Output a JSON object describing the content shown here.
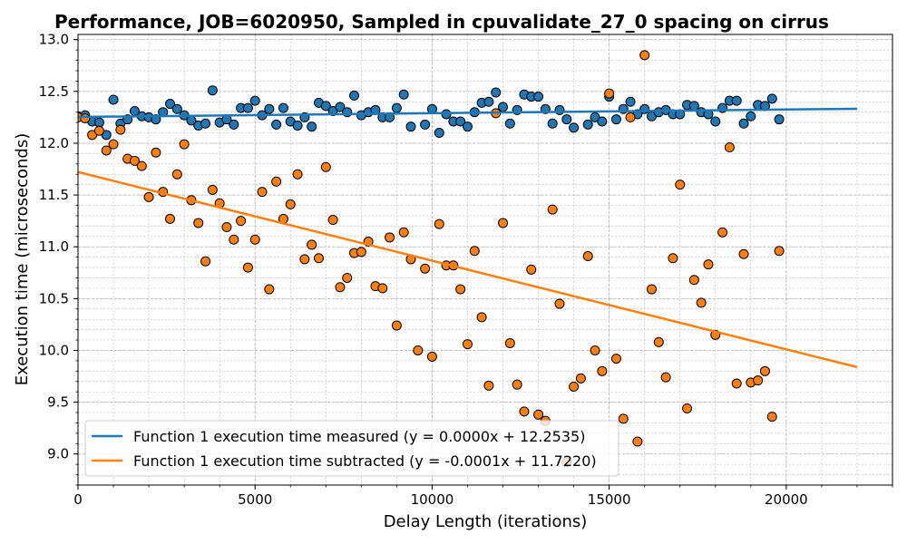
{
  "chart_data": {
    "type": "scatter",
    "title": "Performance, JOB=6020950, Sampled in cpuvalidate_27_0 spacing on cirrus",
    "xlabel": "Delay Length (iterations)",
    "ylabel": "Execution time (microseconds)",
    "xlim": [
      0,
      23000
    ],
    "ylim": [
      8.7,
      13.05
    ],
    "xticks": [
      "0",
      "5000",
      "10000",
      "15000",
      "20000"
    ],
    "yticks": [
      "9.0",
      "9.5",
      "10.0",
      "10.5",
      "11.0",
      "11.5",
      "12.0",
      "12.5",
      "13.0"
    ],
    "grid": true,
    "legend_position": "lower-left",
    "series": [
      {
        "name": "Function 1 execution time measured (y = 0.0000x + 12.2535)",
        "color": "#1f77b4",
        "fit": {
          "slope": 3.6e-06,
          "intercept": 12.2535,
          "x_range": [
            0,
            22000
          ]
        },
        "points": [
          [
            0,
            12.26
          ],
          [
            200,
            12.27
          ],
          [
            400,
            12.21
          ],
          [
            600,
            12.2
          ],
          [
            800,
            12.08
          ],
          [
            1000,
            12.42
          ],
          [
            1200,
            12.19
          ],
          [
            1400,
            12.23
          ],
          [
            1600,
            12.31
          ],
          [
            1800,
            12.26
          ],
          [
            2000,
            12.25
          ],
          [
            2200,
            12.23
          ],
          [
            2400,
            12.3
          ],
          [
            2600,
            12.38
          ],
          [
            2800,
            12.33
          ],
          [
            3000,
            12.27
          ],
          [
            3200,
            12.22
          ],
          [
            3400,
            12.17
          ],
          [
            3600,
            12.19
          ],
          [
            3800,
            12.51
          ],
          [
            4000,
            12.2
          ],
          [
            4200,
            12.23
          ],
          [
            4400,
            12.18
          ],
          [
            4600,
            12.34
          ],
          [
            4800,
            12.34
          ],
          [
            5000,
            12.41
          ],
          [
            5200,
            12.27
          ],
          [
            5400,
            12.33
          ],
          [
            5600,
            12.18
          ],
          [
            5800,
            12.34
          ],
          [
            6000,
            12.21
          ],
          [
            6200,
            12.17
          ],
          [
            6400,
            12.25
          ],
          [
            6600,
            12.16
          ],
          [
            6800,
            12.39
          ],
          [
            7000,
            12.36
          ],
          [
            7200,
            12.31
          ],
          [
            7400,
            12.35
          ],
          [
            7600,
            12.3
          ],
          [
            7800,
            12.46
          ],
          [
            8000,
            12.27
          ],
          [
            8200,
            12.3
          ],
          [
            8400,
            12.32
          ],
          [
            8600,
            12.25
          ],
          [
            8800,
            12.25
          ],
          [
            9000,
            12.34
          ],
          [
            9200,
            12.47
          ],
          [
            9400,
            12.16
          ],
          [
            9800,
            12.18
          ],
          [
            10000,
            12.33
          ],
          [
            10200,
            12.1
          ],
          [
            10400,
            12.28
          ],
          [
            10600,
            12.21
          ],
          [
            10800,
            12.21
          ],
          [
            11000,
            12.16
          ],
          [
            11200,
            12.3
          ],
          [
            11400,
            12.39
          ],
          [
            11600,
            12.4
          ],
          [
            11800,
            12.49
          ],
          [
            12000,
            12.35
          ],
          [
            12200,
            12.19
          ],
          [
            12400,
            12.32
          ],
          [
            12600,
            12.47
          ],
          [
            12800,
            12.45
          ],
          [
            13000,
            12.45
          ],
          [
            13200,
            12.33
          ],
          [
            13400,
            12.19
          ],
          [
            13600,
            12.32
          ],
          [
            13800,
            12.23
          ],
          [
            14000,
            12.15
          ],
          [
            14400,
            12.18
          ],
          [
            14600,
            12.25
          ],
          [
            14800,
            12.21
          ],
          [
            15000,
            12.45
          ],
          [
            15200,
            12.23
          ],
          [
            15400,
            12.33
          ],
          [
            15600,
            12.4
          ],
          [
            15800,
            12.28
          ],
          [
            16000,
            12.33
          ],
          [
            16200,
            12.26
          ],
          [
            16400,
            12.3
          ],
          [
            16600,
            12.32
          ],
          [
            16800,
            12.28
          ],
          [
            17000,
            12.28
          ],
          [
            17200,
            12.37
          ],
          [
            17400,
            12.36
          ],
          [
            17600,
            12.3
          ],
          [
            17800,
            12.28
          ],
          [
            18000,
            12.21
          ],
          [
            18200,
            12.34
          ],
          [
            18400,
            12.41
          ],
          [
            18600,
            12.41
          ],
          [
            18800,
            12.19
          ],
          [
            19000,
            12.26
          ],
          [
            19200,
            12.37
          ],
          [
            19400,
            12.36
          ],
          [
            19600,
            12.43
          ],
          [
            19800,
            12.23
          ]
        ]
      },
      {
        "name": "Function 1 execution time subtracted (y = -0.0001x + 11.7220)",
        "color": "#ff7f0e",
        "fit": {
          "slope": -8.56e-05,
          "intercept": 11.722,
          "x_range": [
            0,
            22000
          ]
        },
        "points": [
          [
            0,
            12.25
          ],
          [
            200,
            12.24
          ],
          [
            400,
            12.08
          ],
          [
            600,
            12.12
          ],
          [
            800,
            11.93
          ],
          [
            1000,
            11.99
          ],
          [
            1200,
            12.13
          ],
          [
            1400,
            11.85
          ],
          [
            1600,
            11.83
          ],
          [
            1800,
            11.78
          ],
          [
            2000,
            11.48
          ],
          [
            2200,
            11.91
          ],
          [
            2400,
            11.53
          ],
          [
            2600,
            11.27
          ],
          [
            2800,
            11.7
          ],
          [
            3000,
            11.99
          ],
          [
            3200,
            11.45
          ],
          [
            3400,
            11.23
          ],
          [
            3600,
            10.86
          ],
          [
            3800,
            11.55
          ],
          [
            4000,
            11.42
          ],
          [
            4200,
            11.19
          ],
          [
            4400,
            11.07
          ],
          [
            4600,
            11.25
          ],
          [
            4800,
            10.8
          ],
          [
            5000,
            11.07
          ],
          [
            5200,
            11.53
          ],
          [
            5400,
            10.59
          ],
          [
            5600,
            11.63
          ],
          [
            5800,
            11.27
          ],
          [
            6000,
            11.41
          ],
          [
            6200,
            11.7
          ],
          [
            6400,
            10.88
          ],
          [
            6600,
            11.02
          ],
          [
            6800,
            10.89
          ],
          [
            7000,
            11.77
          ],
          [
            7200,
            11.26
          ],
          [
            7400,
            10.61
          ],
          [
            7600,
            10.7
          ],
          [
            7800,
            10.94
          ],
          [
            8000,
            10.95
          ],
          [
            8200,
            11.05
          ],
          [
            8400,
            10.62
          ],
          [
            8600,
            10.6
          ],
          [
            8800,
            11.09
          ],
          [
            9000,
            10.24
          ],
          [
            9200,
            11.14
          ],
          [
            9400,
            10.88
          ],
          [
            9600,
            10.0
          ],
          [
            9800,
            10.79
          ],
          [
            10000,
            9.94
          ],
          [
            10200,
            11.22
          ],
          [
            10400,
            10.82
          ],
          [
            10600,
            10.82
          ],
          [
            10800,
            10.59
          ],
          [
            11000,
            10.06
          ],
          [
            11200,
            10.96
          ],
          [
            11400,
            10.32
          ],
          [
            11600,
            9.66
          ],
          [
            11800,
            12.29
          ],
          [
            12000,
            11.23
          ],
          [
            12200,
            10.07
          ],
          [
            12400,
            9.67
          ],
          [
            12600,
            9.41
          ],
          [
            12800,
            10.78
          ],
          [
            13000,
            9.38
          ],
          [
            13200,
            9.32
          ],
          [
            13400,
            11.36
          ],
          [
            13600,
            10.45
          ],
          [
            13800,
            8.92
          ],
          [
            14000,
            9.65
          ],
          [
            14200,
            9.73
          ],
          [
            14400,
            10.91
          ],
          [
            14600,
            10.0
          ],
          [
            14800,
            9.8
          ],
          [
            15000,
            12.48
          ],
          [
            15200,
            9.92
          ],
          [
            15400,
            9.34
          ],
          [
            15600,
            12.25
          ],
          [
            15800,
            9.12
          ],
          [
            16000,
            12.85
          ],
          [
            16200,
            10.59
          ],
          [
            16400,
            10.08
          ],
          [
            16600,
            9.74
          ],
          [
            16800,
            10.89
          ],
          [
            17000,
            11.6
          ],
          [
            17200,
            9.44
          ],
          [
            17400,
            10.68
          ],
          [
            17600,
            10.46
          ],
          [
            17800,
            10.83
          ],
          [
            18000,
            10.15
          ],
          [
            18200,
            11.14
          ],
          [
            18400,
            11.96
          ],
          [
            18600,
            9.68
          ],
          [
            18800,
            10.93
          ],
          [
            19000,
            9.69
          ],
          [
            19200,
            9.71
          ],
          [
            19400,
            9.8
          ],
          [
            19600,
            9.36
          ],
          [
            19800,
            10.96
          ]
        ]
      }
    ]
  }
}
